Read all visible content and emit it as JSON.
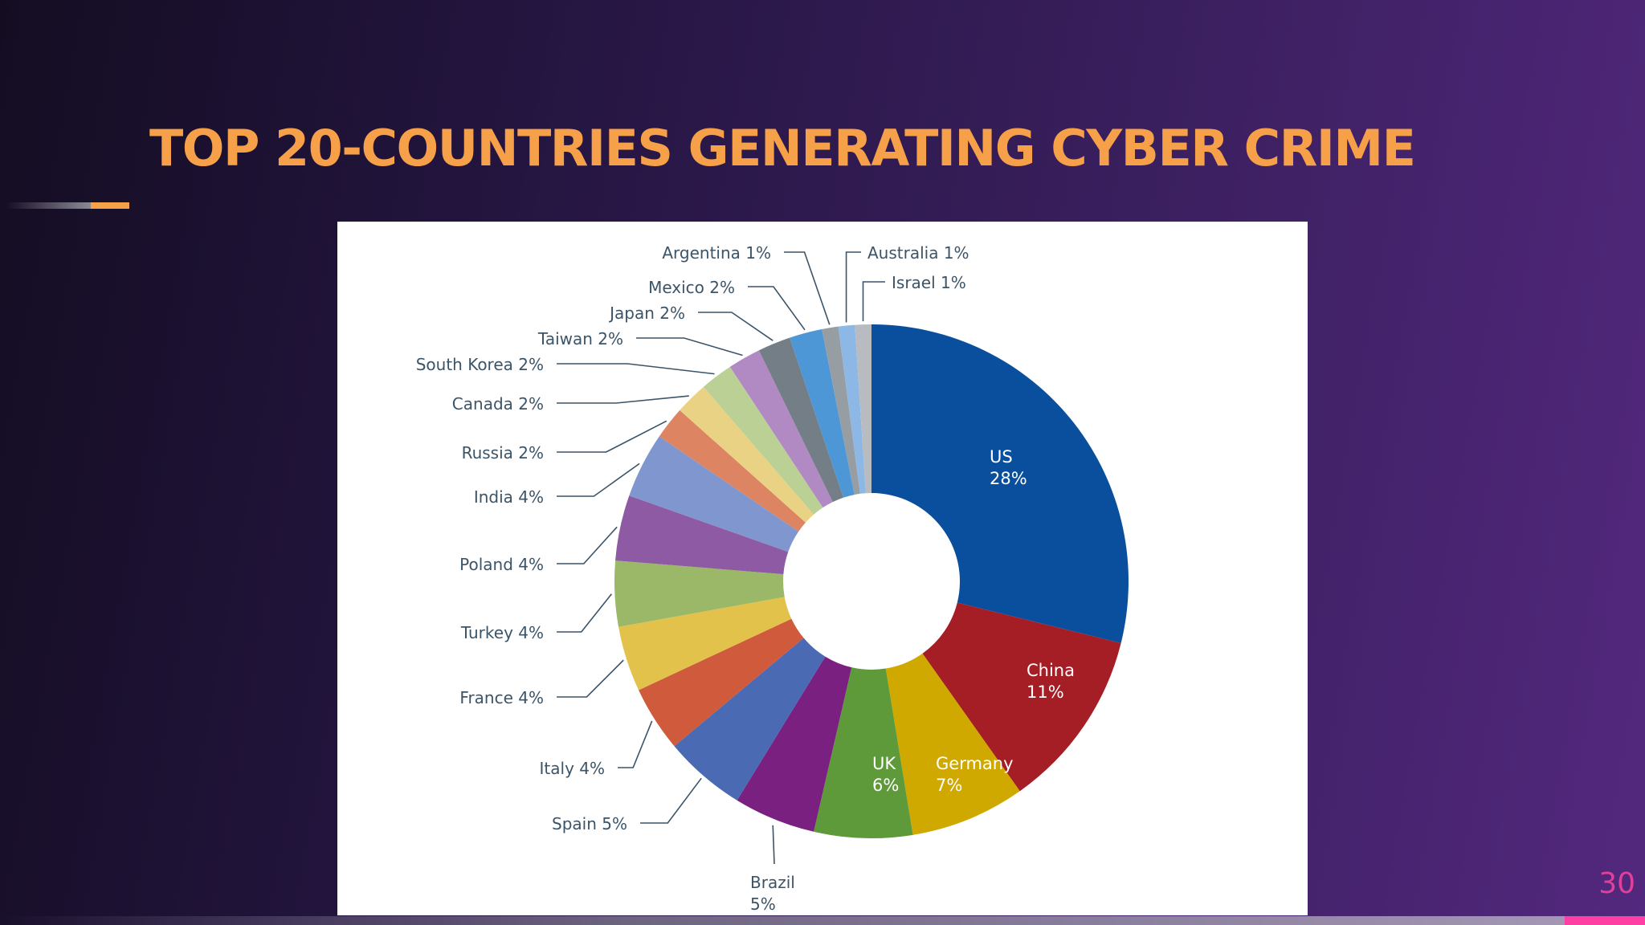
{
  "slide": {
    "title": "TOP 20-COUNTRIES GENERATING CYBER CRIME",
    "page_number": "30"
  },
  "chart_data": {
    "type": "pie",
    "donut": true,
    "categories": [
      "US",
      "China",
      "Germany",
      "UK",
      "Brazil",
      "Spain",
      "Italy",
      "France",
      "Turkey",
      "Poland",
      "India",
      "Russia",
      "Canada",
      "South Korea",
      "Taiwan",
      "Japan",
      "Mexico",
      "Argentina",
      "Australia",
      "Israel"
    ],
    "values": [
      28,
      11,
      7,
      6,
      5,
      5,
      4,
      4,
      4,
      4,
      4,
      2,
      2,
      2,
      2,
      2,
      2,
      1,
      1,
      1
    ],
    "labels": [
      "US 28%",
      "China 11%",
      "Germany 7%",
      "UK 6%",
      "Brazil 5%",
      "Spain 5%",
      "Italy 4%",
      "France 4%",
      "Turkey 4%",
      "Poland 4%",
      "India 4%",
      "Russia 2%",
      "Canada 2%",
      "South Korea 2%",
      "Taiwan 2%",
      "Japan 2%",
      "Mexico 2%",
      "Argentina 1%",
      "Australia 1%",
      "Israel 1%"
    ],
    "colors": [
      "#0a4f9e",
      "#a51d25",
      "#cfa800",
      "#5e9a3a",
      "#7a2080",
      "#4a6ab4",
      "#d05a3c",
      "#e2c24a",
      "#9ab868",
      "#8e5aa3",
      "#7f96cf",
      "#dd8563",
      "#e9d283",
      "#bbd094",
      "#b28ac3",
      "#737e86",
      "#4e97d6",
      "#969da3",
      "#8db8e6",
      "#b8bcc0"
    ]
  },
  "colors": {
    "title": "#f7a04a",
    "page_number": "#e0409a",
    "accent_pink": "#ff3fa4",
    "label_inside": "#ffffff",
    "label_outside": "#3b5468"
  }
}
